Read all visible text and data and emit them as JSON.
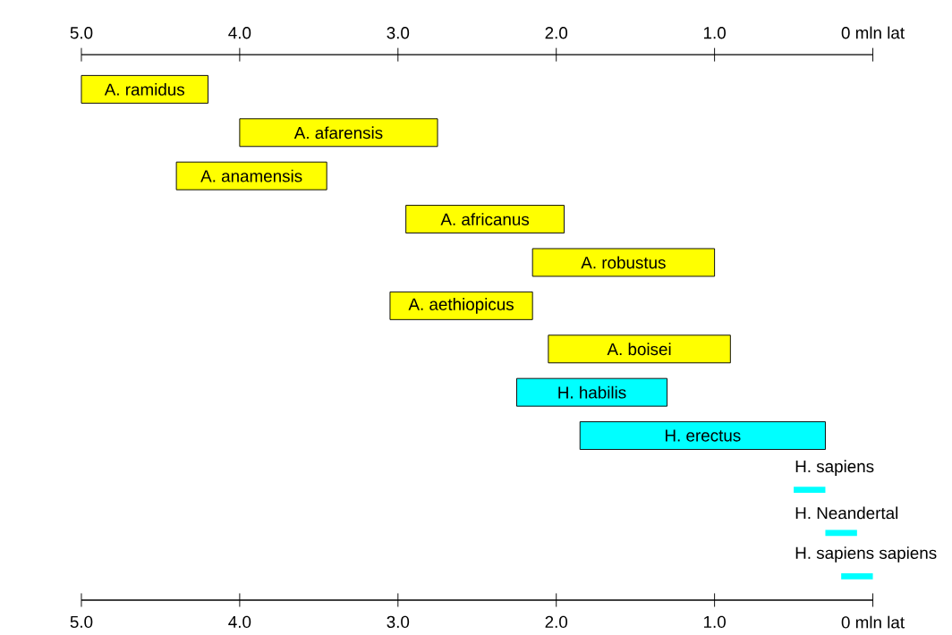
{
  "chart_data": {
    "type": "bar",
    "orientation": "horizontal",
    "categories": [
      "A. ramidus",
      "A. afarensis",
      "A. anamensis",
      "A. africanus",
      "A. robustus",
      "A. aethiopicus",
      "A. boisei",
      "H. habilis",
      "H. erectus",
      "H. sapiens",
      "H. Neandertal",
      "H. sapiens sapiens"
    ],
    "base": [
      4.2,
      2.75,
      3.45,
      1.95,
      1.0,
      2.15,
      0.9,
      1.3,
      0.3,
      0.3,
      0.1,
      0.0
    ],
    "values": [
      0.8,
      1.25,
      0.95,
      1.0,
      1.15,
      0.9,
      1.15,
      0.95,
      1.55,
      0.2,
      0.2,
      0.2
    ],
    "colors": [
      "#ffff00",
      "#ffff00",
      "#ffff00",
      "#ffff00",
      "#ffff00",
      "#ffff00",
      "#ffff00",
      "#00ffff",
      "#00ffff",
      "#00ffff",
      "#00ffff",
      "#00ffff"
    ],
    "xlim": [
      5.0,
      0
    ],
    "xticks": [
      {
        "value": 5.0,
        "label": "5.0"
      },
      {
        "value": 4.0,
        "label": "4.0"
      },
      {
        "value": 3.0,
        "label": "3.0"
      },
      {
        "value": 2.0,
        "label": "2.0"
      },
      {
        "value": 1.0,
        "label": "1.0"
      },
      {
        "value": 0,
        "label": "0 mln lat"
      }
    ],
    "x2lim": [
      5.0,
      0
    ],
    "x2ticks": [
      {
        "value": 5.0,
        "label": "5.0"
      },
      {
        "value": 4.0,
        "label": "4.0"
      },
      {
        "value": 3.0,
        "label": "3.0"
      },
      {
        "value": 2.0,
        "label": "2.0"
      },
      {
        "value": 1.0,
        "label": "1.0"
      },
      {
        "value": 0,
        "label": "0 mln lat"
      }
    ],
    "tick_labels": "x"
  }
}
